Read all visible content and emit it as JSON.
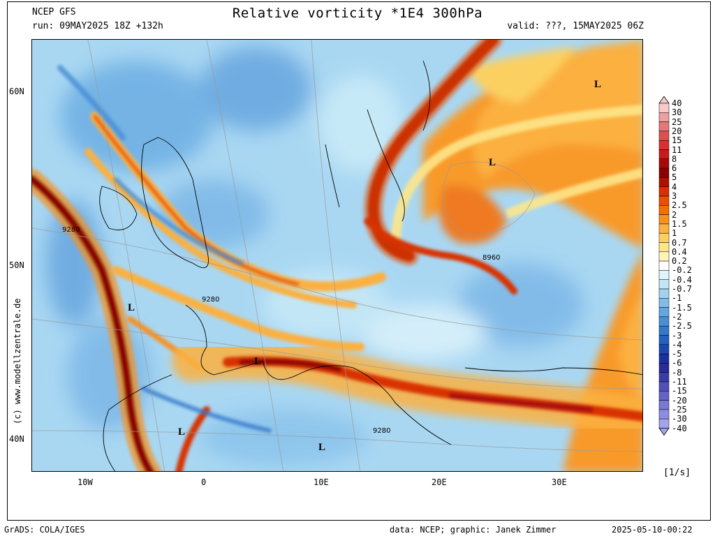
{
  "header": {
    "model": "NCEP GFS",
    "run": "run: 09MAY2025 18Z +132h",
    "title": "Relative vorticity *1E4 300hPa",
    "valid": "valid: ???, 15MAY2025 06Z"
  },
  "footer": {
    "grads": "GrADS: COLA/IGES",
    "credit": "data: NCEP; graphic: Janek Zimmer",
    "date": "2025-05-10-00:22"
  },
  "copyright": "(c) www.modellzentrale.de",
  "axes": {
    "lat_labels": [
      "60N",
      "50N",
      "40N"
    ],
    "lon_labels": [
      "10W",
      "0",
      "10E",
      "20E",
      "30E"
    ]
  },
  "legend": {
    "units": "[1/s]",
    "levels": [
      "40",
      "30",
      "25",
      "20",
      "15",
      "11",
      "8",
      "6",
      "5",
      "4",
      "3",
      "2.5",
      "2",
      "1.5",
      "1",
      "0.7",
      "0.4",
      "0.2",
      "-0.2",
      "-0.4",
      "-0.7",
      "-1",
      "-1.5",
      "-2",
      "-2.5",
      "-3",
      "-4",
      "-5",
      "-6",
      "-8",
      "-11",
      "-15",
      "-20",
      "-25",
      "-30",
      "-40"
    ],
    "colors": [
      "#f7c9c9",
      "#eda0a0",
      "#e47878",
      "#dc5050",
      "#d83030",
      "#c81a1a",
      "#a80808",
      "#8c0000",
      "#b01000",
      "#d83000",
      "#e85000",
      "#f07000",
      "#f89020",
      "#fbb040",
      "#fcd060",
      "#fde68a",
      "#fff4b8",
      "#ffffff",
      "#e0f4fb",
      "#c2e6f6",
      "#a2d2f0",
      "#82bce8",
      "#64a6e0",
      "#4a8ed6",
      "#3478cc",
      "#2460bf",
      "#1a48b0",
      "#1a30a0",
      "#2a2a98",
      "#3c3ca8",
      "#5050b8",
      "#6464c8",
      "#7878d6",
      "#8c8ce2",
      "#a4a4ec"
    ]
  },
  "map": {
    "lows": [
      "L",
      "L",
      "L",
      "L",
      "L",
      "L"
    ],
    "contour_labels": [
      "9280",
      "9280",
      "8960",
      "9280"
    ]
  }
}
